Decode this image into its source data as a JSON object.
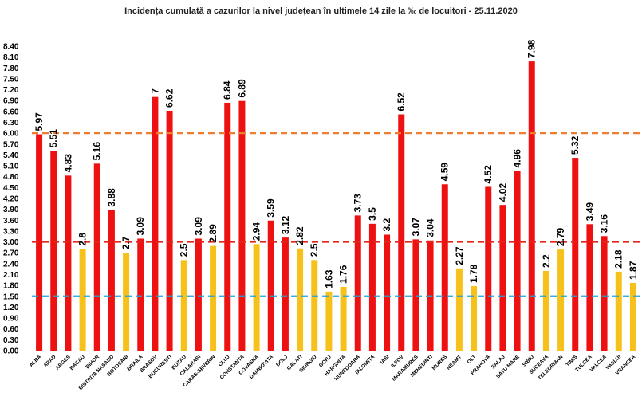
{
  "chart_data": {
    "type": "bar",
    "title": "Incidența cumulată a cazurilor la nivel județean în ultimele 14 zile la ‰ de locuitori - 25.11.2020",
    "categories": [
      "ALBA",
      "ARAD",
      "ARGES",
      "BACAU",
      "BIHOR",
      "BISTRITA NASAUD",
      "BOTOSANI",
      "BRAILA",
      "BRASOV",
      "BUCURESTI",
      "BUZAU",
      "CALARASI",
      "CARAS-SEVERIN",
      "CLUJ",
      "CONSTANTA",
      "COVASNA",
      "DAMBOVITA",
      "DOLJ",
      "GALATI",
      "GIURGIU",
      "GORJ",
      "HARGHITA",
      "HUNEDOARA",
      "IALOMITA",
      "IASI",
      "ILFOV",
      "MARAMURES",
      "MEHEDINTI",
      "MURES",
      "NEAMT",
      "OLT",
      "PRAHOVA",
      "SALAJ",
      "SATU MARE",
      "SIBIU",
      "SUCEAVA",
      "TELEORMAN",
      "TIMIS",
      "TULCEA",
      "VALCEA",
      "VASLUI",
      "VRANCEA"
    ],
    "values": [
      5.97,
      5.51,
      4.83,
      2.8,
      5.16,
      3.88,
      2.7,
      3.09,
      7,
      6.62,
      2.5,
      3.09,
      2.89,
      6.84,
      6.89,
      2.94,
      3.59,
      3.12,
      2.82,
      2.5,
      1.63,
      1.76,
      3.73,
      3.5,
      3.2,
      6.52,
      3.07,
      3.04,
      4.59,
      2.27,
      1.78,
      4.52,
      4.02,
      4.96,
      7.98,
      2.2,
      2.79,
      5.32,
      3.49,
      3.16,
      2.18,
      1.87
    ],
    "data_labels": [
      "5.97",
      "5.51",
      "4.83",
      "2.8",
      "5.16",
      "3.88",
      "2.7",
      "3.09",
      "7",
      "6.62",
      "2.5",
      "3.09",
      "2.89",
      "6.84",
      "6.89",
      "2.94",
      "3.59",
      "3.12",
      "2.82",
      "2.5",
      "1.63",
      "1.76",
      "3.73",
      "3.5",
      "3.2",
      "6.52",
      "3.07",
      "3.04",
      "4.59",
      "2.27",
      "1.78",
      "4.52",
      "4.02",
      "4.96",
      "7.98",
      "2.2",
      "2.79",
      "5.32",
      "3.49",
      "3.16",
      "2.18",
      "1.87"
    ],
    "yticks": [
      "0.00",
      "0.30",
      "0.60",
      "0.90",
      "1.20",
      "1.50",
      "1.80",
      "2.10",
      "2.40",
      "2.70",
      "3.00",
      "3.30",
      "3.60",
      "3.90",
      "4.20",
      "4.50",
      "4.80",
      "5.10",
      "5.40",
      "5.70",
      "6.00",
      "6.30",
      "6.60",
      "6.90",
      "7.20",
      "7.50",
      "7.80",
      "8.10",
      "8.40"
    ],
    "ylim": [
      0,
      8.4
    ],
    "thresholds": [
      {
        "value": 6.0,
        "color": "#ED7D31"
      },
      {
        "value": 3.0,
        "color": "#E3261C"
      },
      {
        "value": 1.5,
        "color": "#1FA2D8"
      }
    ],
    "color_rule": "values above 3.00 red, otherwise yellow",
    "colors": {
      "high": "#EE1111",
      "low": "#F7C11C"
    },
    "grid": false,
    "legend": "none",
    "xlabel": "",
    "ylabel": ""
  }
}
